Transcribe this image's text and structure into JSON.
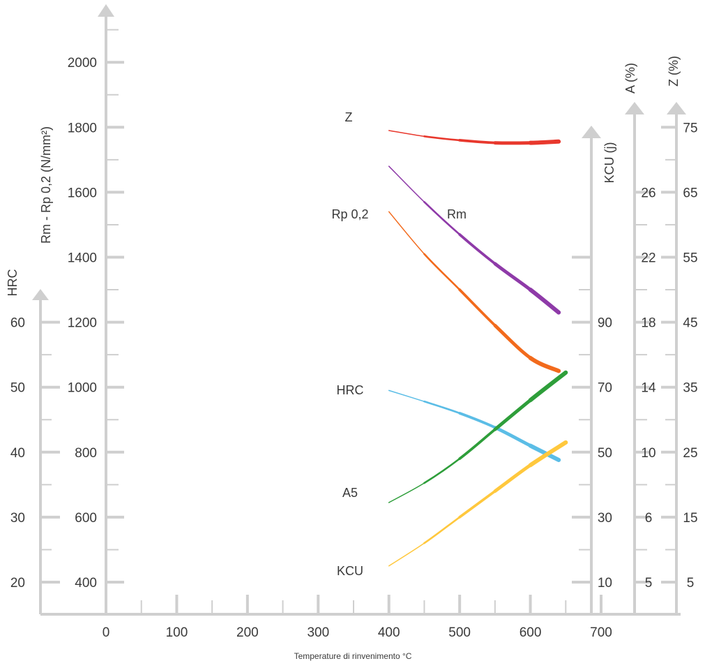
{
  "chart_data": {
    "type": "line",
    "xlabel": "Temperature di rinvenimento °C",
    "x_ticks": [
      "0",
      "100",
      "200",
      "300",
      "400",
      "500",
      "600",
      "700"
    ],
    "xlim": [
      0,
      700
    ],
    "axes": {
      "hrc": {
        "title": "HRC",
        "ticks": [
          "20",
          "30",
          "40",
          "50",
          "60"
        ],
        "range": [
          20,
          60
        ]
      },
      "stress": {
        "title": "Rm - Rp 0,2 (N/mm²)",
        "ticks": [
          "400",
          "600",
          "800",
          "1000",
          "1200",
          "1400",
          "1600",
          "1800",
          "2000"
        ],
        "range": [
          400,
          2000
        ]
      },
      "kcu": {
        "title": "KCU (j)",
        "ticks": [
          "10",
          "30",
          "50",
          "70",
          "90"
        ],
        "range": [
          10,
          90
        ]
      },
      "a": {
        "title": "A (%)",
        "ticks": [
          "5",
          "6",
          "10",
          "14",
          "18",
          "22",
          "26"
        ],
        "range": [
          6,
          26
        ]
      },
      "z": {
        "title": "Z (%)",
        "ticks": [
          "5",
          "15",
          "25",
          "35",
          "45",
          "55",
          "65",
          "75"
        ],
        "range": [
          5,
          75
        ]
      }
    },
    "series": [
      {
        "name": "Z",
        "axis": "z",
        "color": "#e8382d",
        "x": [
          400,
          450,
          500,
          550,
          600,
          640
        ],
        "y": [
          74.5,
          73.6,
          73.0,
          72.6,
          72.6,
          72.8
        ]
      },
      {
        "name": "Rm",
        "axis": "stress",
        "color": "#8e3aa8",
        "x": [
          400,
          450,
          500,
          550,
          600,
          640
        ],
        "y": [
          1680,
          1570,
          1470,
          1380,
          1300,
          1230
        ]
      },
      {
        "name": "Rp 0,2",
        "axis": "stress",
        "color": "#f26a1c",
        "x": [
          400,
          450,
          500,
          550,
          600,
          640
        ],
        "y": [
          1540,
          1410,
          1300,
          1190,
          1090,
          1050
        ]
      },
      {
        "name": "HRC",
        "axis": "hrc",
        "color": "#5bbde6",
        "x": [
          400,
          450,
          500,
          550,
          600,
          640
        ],
        "y": [
          49.5,
          47.8,
          46.0,
          43.8,
          41.0,
          38.8
        ]
      },
      {
        "name": "A5",
        "axis": "a",
        "color": "#2e9e3a",
        "x": [
          400,
          450,
          500,
          550,
          600,
          650
        ],
        "y": [
          6.9,
          8.1,
          9.6,
          11.4,
          13.2,
          14.9
        ]
      },
      {
        "name": "KCU",
        "axis": "kcu",
        "color": "#ffc83d",
        "x": [
          400,
          450,
          500,
          550,
          600,
          650
        ],
        "y": [
          15,
          22,
          30,
          38,
          46,
          53
        ]
      }
    ]
  }
}
